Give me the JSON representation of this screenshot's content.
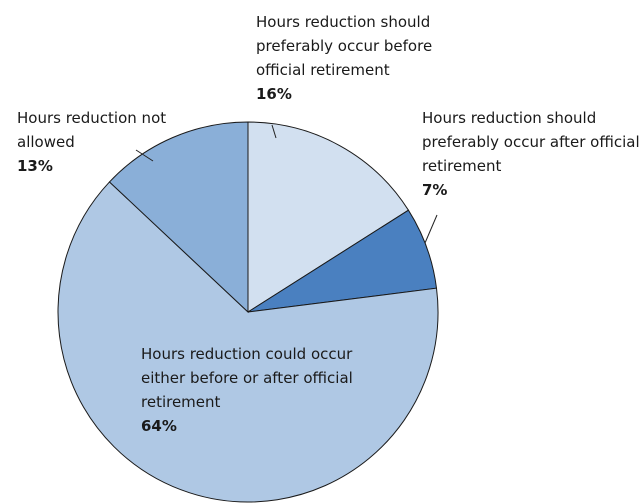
{
  "chart_data": {
    "type": "pie",
    "categories": [
      "Hours reduction should preferably occur before official retirement",
      "Hours reduction should preferably occur after official retirement",
      "Hours reduction could occur either before or after official retirement",
      "Hours reduction not allowed"
    ],
    "values": [
      16,
      7,
      64,
      13
    ],
    "value_labels": [
      "16%",
      "7%",
      "64%",
      "13%"
    ],
    "colors": [
      "#d2e0f0",
      "#4a80c0",
      "#afc8e4",
      "#8aafd8"
    ]
  }
}
